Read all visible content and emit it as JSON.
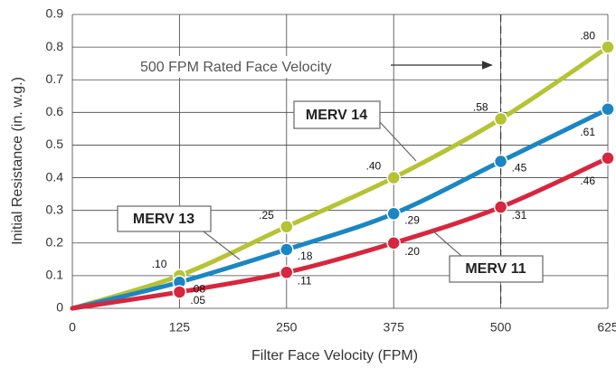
{
  "chart_data": {
    "type": "line",
    "x_label": "Filter Face Velocity (FPM)",
    "y_label": "Initial Resistance (in. w.g.)",
    "annotation": "500 FPM Rated Face Velocity",
    "annotation_x": 500,
    "x": [
      0,
      125,
      250,
      375,
      500,
      625
    ],
    "xlim": [
      0,
      625
    ],
    "xticks": [
      0,
      125,
      250,
      375,
      500,
      625
    ],
    "ylim": [
      0,
      0.9
    ],
    "yticks": [
      0,
      0.1,
      0.2,
      0.3,
      0.4,
      0.5,
      0.6,
      0.7,
      0.8,
      0.9
    ],
    "grid": true,
    "series": [
      {
        "name": "MERV 14",
        "color": "#b5c334",
        "values": [
          0,
          0.1,
          0.25,
          0.4,
          0.58,
          0.8
        ],
        "value_labels": [
          null,
          ".10",
          ".25",
          ".40",
          ".58",
          ".80"
        ]
      },
      {
        "name": "MERV 13",
        "color": "#1a86c4",
        "values": [
          0,
          0.08,
          0.18,
          0.29,
          0.45,
          0.61
        ],
        "value_labels": [
          null,
          ".08",
          ".18",
          ".29",
          ".45",
          ".61"
        ]
      },
      {
        "name": "MERV 11",
        "color": "#d7263d",
        "values": [
          0,
          0.05,
          0.11,
          0.2,
          0.31,
          0.46
        ],
        "value_labels": [
          null,
          ".05",
          ".11",
          ".20",
          ".31",
          ".46"
        ]
      }
    ]
  }
}
